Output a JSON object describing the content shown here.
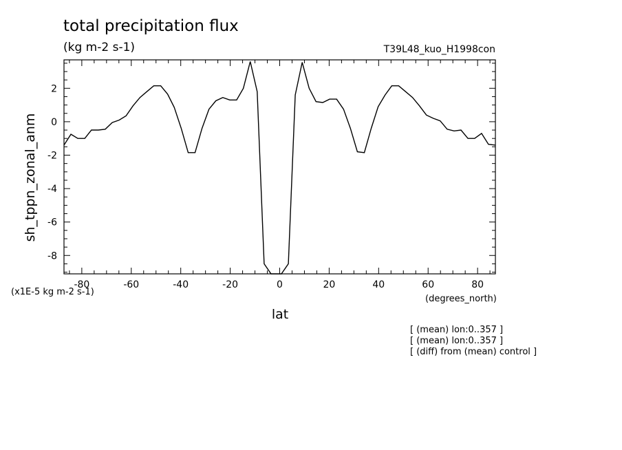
{
  "chart_data": {
    "type": "line",
    "title": "total precipitation flux",
    "units": "(kg m-2 s-1)",
    "run_label": "T39L48_kuo_H1998con",
    "xlabel": "lat",
    "x_units": "(degrees_north)",
    "ylabel": "sh_tppn_zonal_anm",
    "y_scale_note": "(x1E-5 kg m-2 s-1)",
    "xlim": [
      -87.2,
      87.2
    ],
    "ylim": [
      -9.1,
      3.7
    ],
    "x_ticks": [
      -80,
      -60,
      -40,
      -20,
      0,
      20,
      40,
      60,
      80
    ],
    "y_ticks": [
      -8,
      -6,
      -4,
      -2,
      0,
      2
    ],
    "x": [
      -87.2,
      -84.4,
      -81.6,
      -78.8,
      -76.1,
      -73.3,
      -70.5,
      -67.7,
      -64.9,
      -62.1,
      -59.3,
      -56.5,
      -53.7,
      -50.9,
      -48.1,
      -45.3,
      -42.6,
      -39.8,
      -37.0,
      -34.2,
      -31.4,
      -28.6,
      -25.8,
      -23.0,
      -20.2,
      -17.4,
      -14.7,
      -11.9,
      -9.1,
      -6.3,
      -3.5,
      -0.7,
      0.7,
      3.5,
      6.3,
      9.1,
      11.9,
      14.7,
      17.4,
      20.2,
      23.0,
      25.8,
      28.6,
      31.4,
      34.2,
      37.0,
      39.8,
      42.6,
      45.3,
      48.1,
      50.9,
      53.7,
      56.5,
      59.3,
      62.1,
      64.9,
      67.7,
      70.5,
      73.3,
      76.1,
      78.8,
      81.6,
      84.4,
      87.2
    ],
    "y": [
      -1.4,
      -0.75,
      -1.0,
      -1.0,
      -0.5,
      -0.5,
      -0.45,
      -0.05,
      0.1,
      0.35,
      0.95,
      1.45,
      1.8,
      2.15,
      2.15,
      1.65,
      0.85,
      -0.4,
      -1.85,
      -1.85,
      -0.4,
      0.75,
      1.25,
      1.45,
      1.3,
      1.3,
      2.0,
      3.6,
      1.8,
      -8.5,
      -9.1,
      -9.1,
      -9.1,
      -8.5,
      1.6,
      3.55,
      2.0,
      1.2,
      1.15,
      1.35,
      1.35,
      0.75,
      -0.4,
      -1.8,
      -1.85,
      -0.4,
      0.9,
      1.6,
      2.15,
      2.15,
      1.8,
      1.45,
      0.95,
      0.4,
      0.2,
      0.05,
      -0.45,
      -0.55,
      -0.5,
      -1.0,
      -1.0,
      -0.7,
      -1.35,
      -1.4
    ],
    "grid": false,
    "legend": "none"
  },
  "annotations": [
    "[ (mean) lon:0..357 ]",
    "[ (mean) lon:0..357 ]",
    "[ (diff) from (mean) control ]"
  ],
  "colors": {
    "line": "#000000",
    "background": "#ffffff"
  }
}
